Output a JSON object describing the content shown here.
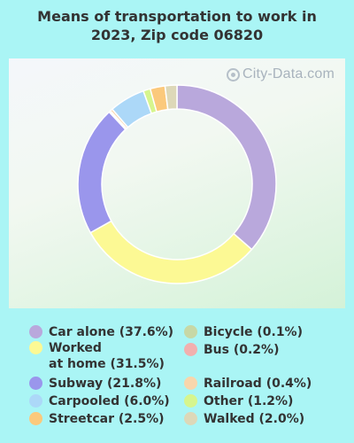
{
  "title_line1": "Means of transportation to work in",
  "title_line2": "2023, Zip code 06820",
  "watermark": "City-Data.com",
  "watermark_icon": "magnifier-icon",
  "chart_data": {
    "type": "pie",
    "variant": "donut",
    "start_angle_deg": 0,
    "slices": [
      {
        "label": "Car alone",
        "legend_text": "Car alone (37.6%)",
        "value": 37.6,
        "color": "#b9a8dc"
      },
      {
        "label": "Worked at home",
        "legend_text": "Worked\nat home (31.5%)",
        "value": 31.5,
        "color": "#fcf994"
      },
      {
        "label": "Subway",
        "legend_text": "Subway (21.8%)",
        "value": 21.8,
        "color": "#9a96ec"
      },
      {
        "label": "Bicycle",
        "legend_text": "Bicycle (0.1%)",
        "value": 0.1,
        "color": "#c7d8a6"
      },
      {
        "label": "Bus",
        "legend_text": "Bus (0.2%)",
        "value": 0.2,
        "color": "#f2b0ae"
      },
      {
        "label": "Railroad",
        "legend_text": "Railroad (0.4%)",
        "value": 0.4,
        "color": "#f8d6ac"
      },
      {
        "label": "Carpooled",
        "legend_text": "Carpooled (6.0%)",
        "value": 6.0,
        "color": "#acd8f8"
      },
      {
        "label": "Other",
        "legend_text": "Other (1.2%)",
        "value": 1.2,
        "color": "#d6f58e"
      },
      {
        "label": "Streetcar",
        "legend_text": "Streetcar (2.5%)",
        "value": 2.5,
        "color": "#fbc97c"
      },
      {
        "label": "Walked",
        "legend_text": "Walked (2.0%)",
        "value": 2.0,
        "color": "#ddd8b8"
      }
    ],
    "legend": {
      "placement": "bottom",
      "columns": [
        [
          "Car alone",
          "Worked at home",
          "Subway",
          "Carpooled",
          "Streetcar"
        ],
        [
          "Bicycle",
          "Bus",
          "Railroad",
          "Other",
          "Walked"
        ]
      ]
    }
  }
}
